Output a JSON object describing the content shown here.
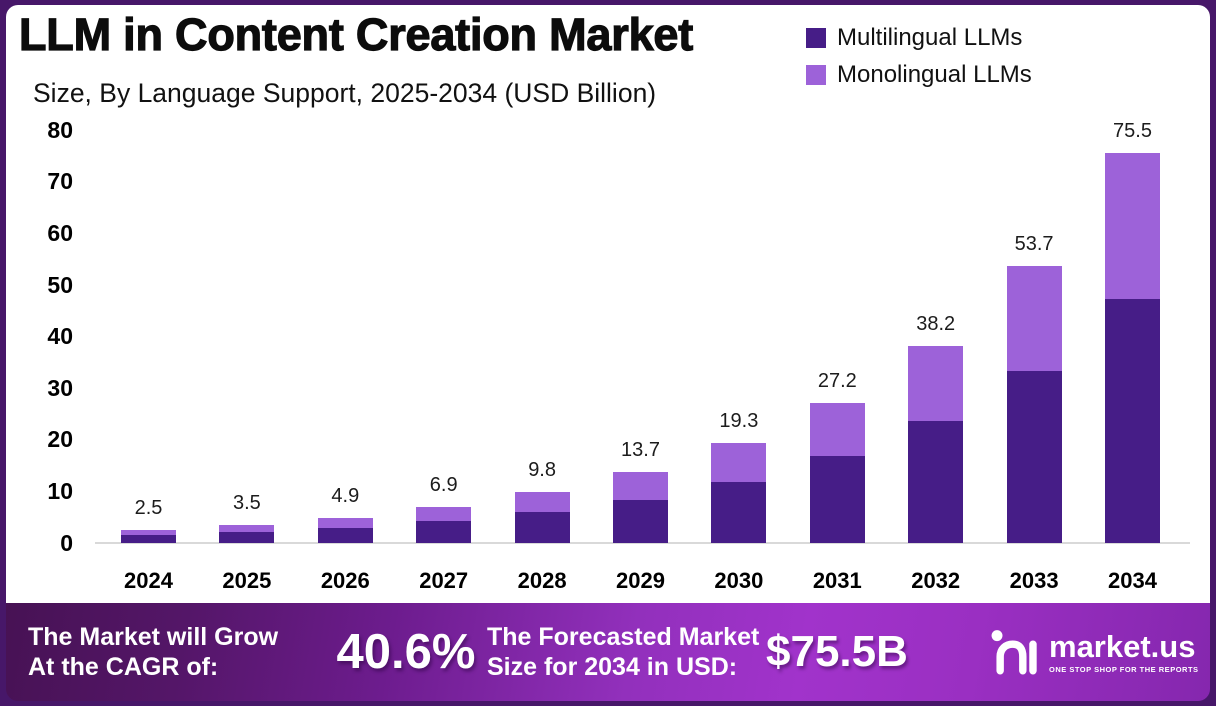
{
  "header": {
    "title": "LLM in Content Creation Market",
    "subtitle": "Size, By Language Support, 2025-2034 (USD Billion)"
  },
  "legend": [
    {
      "label": "Multilingual LLMs",
      "color": "#461d87"
    },
    {
      "label": "Monolingual LLMs",
      "color": "#9d62d9"
    }
  ],
  "chart_data": {
    "type": "bar",
    "stacked": true,
    "categories": [
      "2024",
      "2025",
      "2026",
      "2027",
      "2028",
      "2029",
      "2030",
      "2031",
      "2032",
      "2033",
      "2034"
    ],
    "series": [
      {
        "name": "Multilingual LLMs",
        "color": "#461d87",
        "values": [
          1.5,
          2.1,
          3.0,
          4.2,
          6.0,
          8.4,
          11.9,
          16.8,
          23.6,
          33.4,
          47.3
        ]
      },
      {
        "name": "Monolingual LLMs",
        "color": "#9d62d9",
        "values": [
          1.0,
          1.4,
          1.9,
          2.7,
          3.8,
          5.3,
          7.4,
          10.4,
          14.6,
          20.3,
          28.2
        ]
      }
    ],
    "totals": [
      2.5,
      3.5,
      4.9,
      6.9,
      9.8,
      13.7,
      19.3,
      27.2,
      38.2,
      53.7,
      75.5
    ],
    "title": "LLM in Content Creation Market Size, By Language Support, 2025-2034 (USD Billion)",
    "xlabel": "",
    "ylabel": "",
    "ylim": [
      0,
      80
    ],
    "yticks": [
      0,
      10,
      20,
      30,
      40,
      50,
      60,
      70,
      80
    ],
    "grid": false,
    "legend_position": "top-right",
    "value_labels": "totals shown above each bar"
  },
  "footer": {
    "cagr_label_line1": "The Market will Grow",
    "cagr_label_line2": "At the CAGR of:",
    "cagr_value": "40.6%",
    "forecast_label_line1": "The Forecasted Market",
    "forecast_label_line2": "Size for 2034 in USD:",
    "forecast_value": "$75.5B",
    "brand_name": "market.us",
    "brand_tagline": "ONE STOP SHOP FOR THE REPORTS",
    "gradient_left": "#471254",
    "gradient_right": "#9c2fc4"
  },
  "frame_color": "#471769"
}
